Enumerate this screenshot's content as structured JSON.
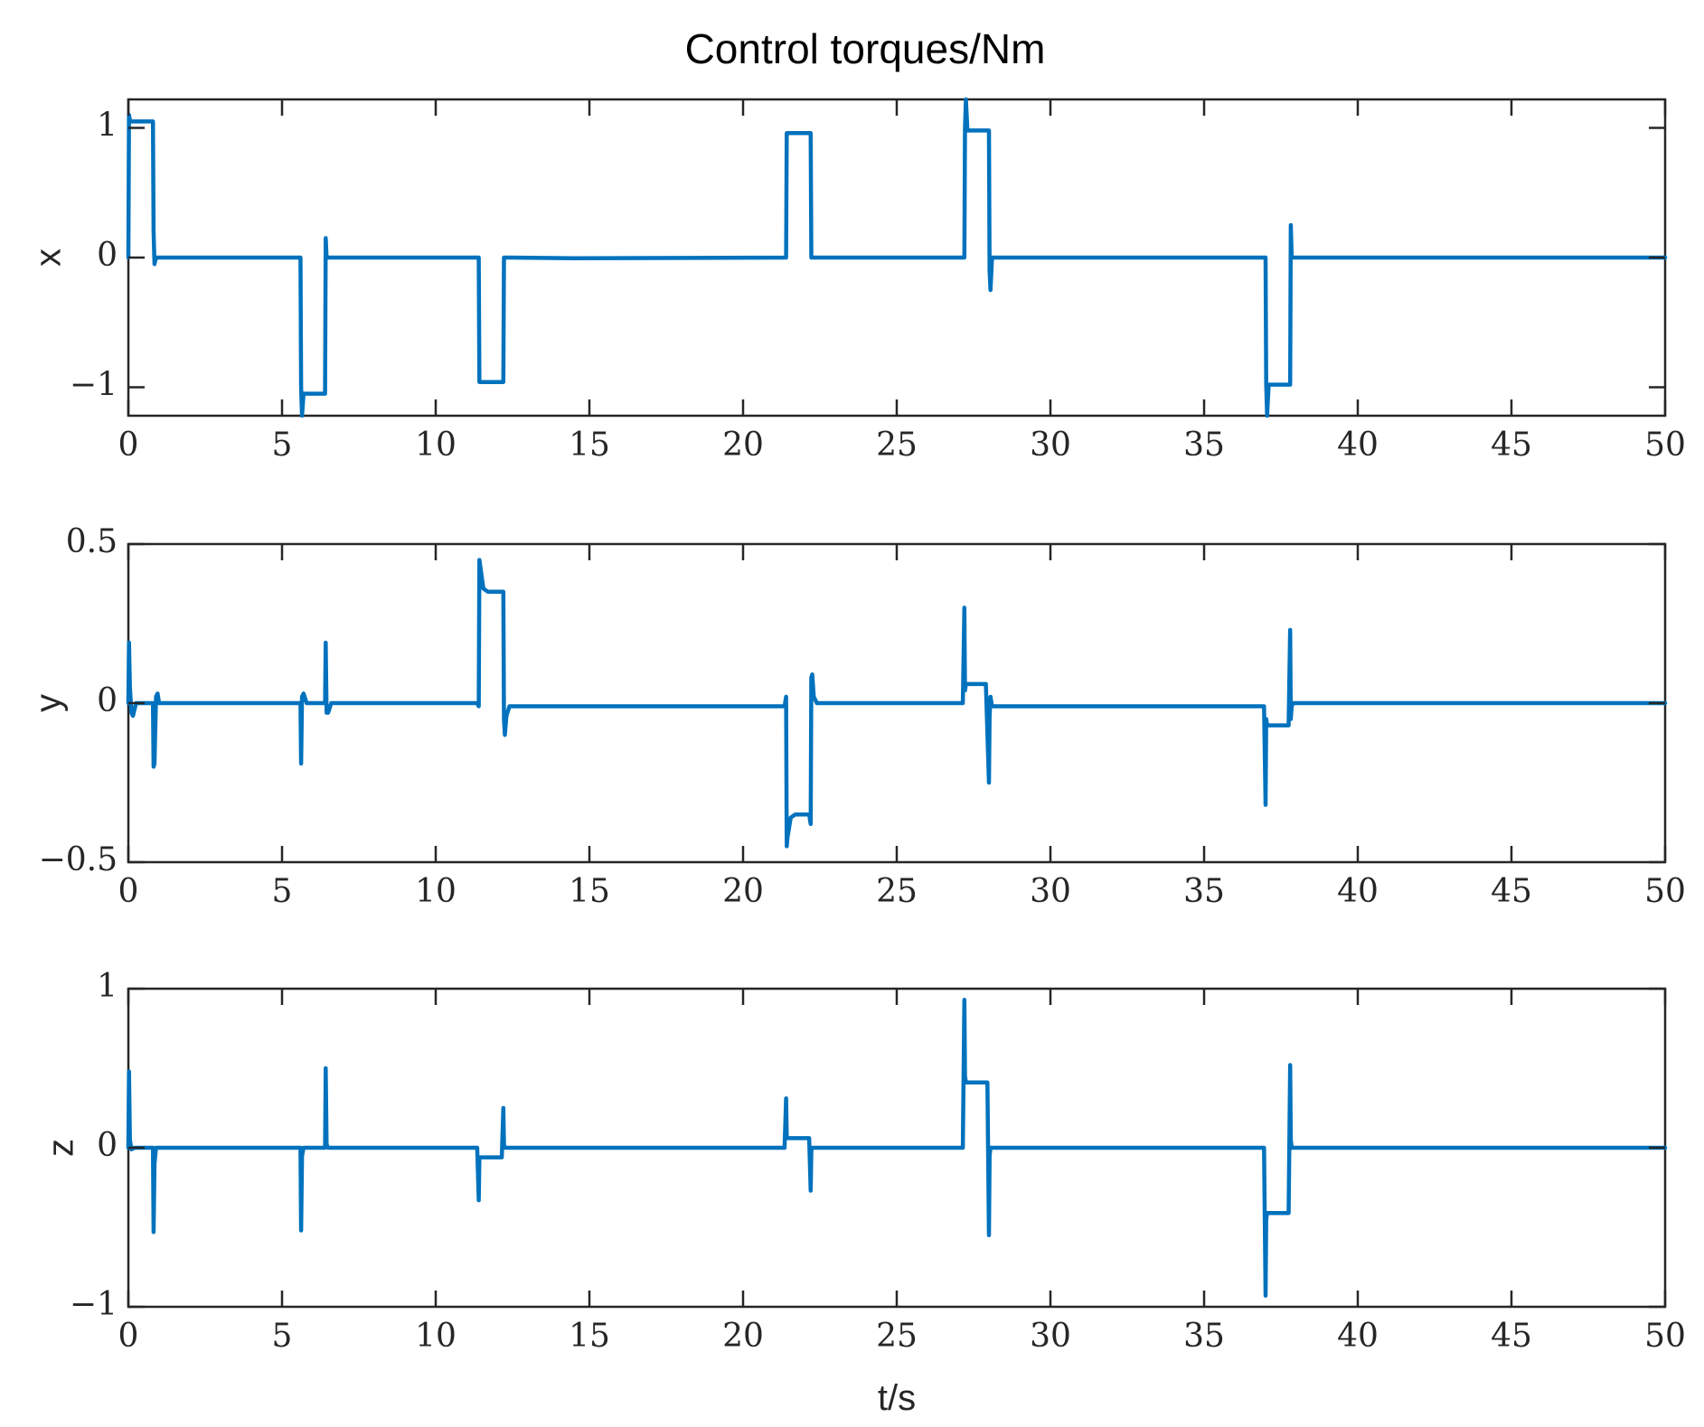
{
  "title": "Control torques/Nm",
  "xlabel": "t/s",
  "colors": {
    "series": "#0072BD",
    "axes": "#262626"
  },
  "chart_data": [
    {
      "type": "line",
      "ylabel": "x",
      "xlim": [
        0,
        50
      ],
      "ylim": [
        -1.22,
        1.22
      ],
      "xticks": [
        0,
        5,
        10,
        15,
        20,
        25,
        30,
        35,
        40,
        45,
        50
      ],
      "xtick_labels": [
        "0",
        "5",
        "10",
        "15",
        "20",
        "25",
        "30",
        "35",
        "40",
        "45",
        "50"
      ],
      "yticks": [
        -1,
        0,
        1
      ],
      "ytick_labels": [
        "−1",
        "0",
        "1"
      ],
      "grid": false,
      "series": [
        {
          "x": [
            0,
            0.02,
            0.05,
            0.1,
            0.3,
            0.8,
            0.82,
            0.85,
            0.9,
            1.0,
            5.6,
            5.62,
            5.65,
            5.7,
            5.9,
            6.4,
            6.42,
            6.45,
            6.5,
            6.6,
            11.4,
            11.42,
            11.5,
            11.6,
            12.2,
            12.22,
            12.3,
            12.4,
            14.5,
            21.4,
            21.42,
            21.5,
            21.6,
            22.2,
            22.22,
            22.3,
            22.4,
            27.2,
            27.22,
            27.25,
            27.3,
            27.4,
            28.0,
            28.02,
            28.05,
            28.1,
            28.2,
            37.0,
            37.02,
            37.05,
            37.1,
            37.2,
            37.8,
            37.82,
            37.85,
            37.9,
            38.0,
            50
          ],
          "y": [
            0,
            1.1,
            1.06,
            1.05,
            1.05,
            1.05,
            0.2,
            -0.05,
            0.0,
            0.0,
            0.0,
            -1.0,
            -1.22,
            -1.05,
            -1.05,
            -1.05,
            0.15,
            0.0,
            0.0,
            0.0,
            0.0,
            -0.96,
            -0.96,
            -0.96,
            -0.96,
            0.0,
            0.0,
            0.0,
            -0.005,
            0.0,
            0.96,
            0.96,
            0.96,
            0.96,
            0.0,
            0.0,
            0.0,
            0.0,
            1.0,
            1.22,
            0.98,
            0.98,
            0.98,
            -0.1,
            -0.25,
            0.0,
            0.0,
            0.0,
            -0.98,
            -1.22,
            -0.98,
            -0.98,
            -0.98,
            0.25,
            0.0,
            0.0,
            0.0,
            0.0
          ]
        }
      ]
    },
    {
      "type": "line",
      "ylabel": "y",
      "xlim": [
        0,
        50
      ],
      "ylim": [
        -0.5,
        0.5
      ],
      "xticks": [
        0,
        5,
        10,
        15,
        20,
        25,
        30,
        35,
        40,
        45,
        50
      ],
      "xtick_labels": [
        "0",
        "5",
        "10",
        "15",
        "20",
        "25",
        "30",
        "35",
        "40",
        "45",
        "50"
      ],
      "yticks": [
        -0.5,
        0,
        0.5
      ],
      "ytick_labels": [
        "−0.5",
        "0",
        "0.5"
      ],
      "grid": false,
      "series": [
        {
          "x": [
            0,
            0.02,
            0.05,
            0.1,
            0.15,
            0.25,
            0.4,
            0.8,
            0.82,
            0.85,
            0.9,
            0.95,
            1.0,
            1.2,
            5.6,
            5.62,
            5.65,
            5.7,
            5.8,
            6.4,
            6.42,
            6.45,
            6.5,
            6.6,
            6.8,
            11.35,
            11.4,
            11.42,
            11.45,
            11.55,
            11.7,
            12.15,
            12.2,
            12.22,
            12.25,
            12.3,
            12.4,
            12.6,
            21.35,
            21.4,
            21.42,
            21.45,
            21.55,
            21.7,
            22.15,
            22.2,
            22.22,
            22.25,
            22.3,
            22.4,
            22.6,
            27.15,
            27.2,
            27.22,
            27.25,
            27.3,
            27.4,
            27.9,
            28.0,
            28.02,
            28.05,
            28.1,
            28.3,
            36.95,
            37.0,
            37.02,
            37.05,
            37.1,
            37.2,
            37.75,
            37.8,
            37.82,
            37.85,
            37.9,
            38.0,
            50
          ],
          "y": [
            0,
            0.19,
            0.05,
            -0.03,
            -0.04,
            0.0,
            0.0,
            0.0,
            -0.2,
            -0.19,
            0.02,
            0.03,
            0.0,
            0.0,
            0.0,
            -0.19,
            0.02,
            0.03,
            0.0,
            0.0,
            0.19,
            -0.03,
            -0.03,
            0.0,
            0.0,
            0.0,
            -0.01,
            0.45,
            0.43,
            0.36,
            0.35,
            0.35,
            0.35,
            -0.05,
            -0.1,
            -0.04,
            -0.01,
            -0.01,
            -0.01,
            0.02,
            -0.45,
            -0.42,
            -0.36,
            -0.35,
            -0.35,
            -0.38,
            0.08,
            0.09,
            0.02,
            0.0,
            0.0,
            0.0,
            0.3,
            0.04,
            0.06,
            0.06,
            0.06,
            0.06,
            -0.25,
            -0.04,
            0.02,
            -0.01,
            -0.01,
            -0.01,
            -0.32,
            -0.05,
            -0.07,
            -0.07,
            -0.07,
            -0.07,
            0.23,
            -0.05,
            -0.01,
            0.0,
            0.0,
            0.0
          ]
        }
      ]
    },
    {
      "type": "line",
      "ylabel": "z",
      "xlim": [
        0,
        50
      ],
      "ylim": [
        -1,
        1
      ],
      "xticks": [
        0,
        5,
        10,
        15,
        20,
        25,
        30,
        35,
        40,
        45,
        50
      ],
      "xtick_labels": [
        "0",
        "5",
        "10",
        "15",
        "20",
        "25",
        "30",
        "35",
        "40",
        "45",
        "50"
      ],
      "yticks": [
        -1,
        0,
        1
      ],
      "ytick_labels": [
        "−1",
        "0",
        "1"
      ],
      "grid": false,
      "series": [
        {
          "x": [
            0,
            0.02,
            0.05,
            0.1,
            0.2,
            0.8,
            0.82,
            0.85,
            0.9,
            1.0,
            5.6,
            5.62,
            5.65,
            5.7,
            6.4,
            6.42,
            6.45,
            6.5,
            11.35,
            11.4,
            11.42,
            11.45,
            11.5,
            12.15,
            12.2,
            12.22,
            12.25,
            12.3,
            21.35,
            21.4,
            21.42,
            21.45,
            21.5,
            22.15,
            22.2,
            22.22,
            22.25,
            22.3,
            27.15,
            27.2,
            27.22,
            27.25,
            27.3,
            27.95,
            28.0,
            28.02,
            28.05,
            28.1,
            36.95,
            37.0,
            37.02,
            37.05,
            37.1,
            37.75,
            37.8,
            37.82,
            37.85,
            37.9,
            50
          ],
          "y": [
            0,
            0.48,
            0.05,
            -0.01,
            0.0,
            0.0,
            -0.53,
            -0.1,
            0.0,
            0.0,
            0.0,
            -0.52,
            -0.05,
            0.0,
            0.0,
            0.5,
            0.02,
            0.0,
            0.0,
            -0.33,
            -0.07,
            -0.06,
            -0.06,
            -0.06,
            0.25,
            0.02,
            0.0,
            0.0,
            0.0,
            0.31,
            0.07,
            0.06,
            0.06,
            0.06,
            -0.27,
            -0.02,
            0.0,
            0.0,
            0.0,
            0.93,
            0.45,
            0.41,
            0.41,
            0.41,
            -0.55,
            -0.05,
            0.0,
            0.0,
            0.0,
            -0.93,
            -0.45,
            -0.41,
            -0.41,
            -0.41,
            0.52,
            0.05,
            0.0,
            0.0,
            0.0
          ]
        }
      ]
    }
  ]
}
